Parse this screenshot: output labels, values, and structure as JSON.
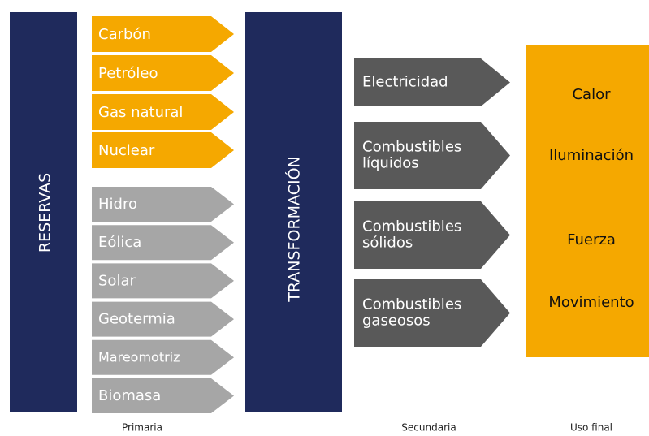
{
  "reserves": {
    "label": "RESERVAS"
  },
  "transformation": {
    "label": "TRANSFORMACIÓN"
  },
  "primary": {
    "fossil": [
      "Carbón",
      "Petróleo",
      "Gas natural",
      "Nuclear"
    ],
    "renewable": [
      "Hidro",
      "Eólica",
      "Solar",
      "Geotermia",
      "Mareomotriz",
      "Biomasa"
    ]
  },
  "secondary": [
    [
      "Electricidad"
    ],
    [
      "Combustibles",
      "líquidos"
    ],
    [
      "Combustibles",
      "sólidos"
    ],
    [
      "Combustibles",
      "gaseosos"
    ]
  ],
  "final_uses": [
    "Calor",
    "Iluminación",
    "Fuerza",
    "Movimiento"
  ],
  "footer": {
    "primary": "Primaria",
    "secondary": "Secundaria",
    "final": "Uso final"
  }
}
